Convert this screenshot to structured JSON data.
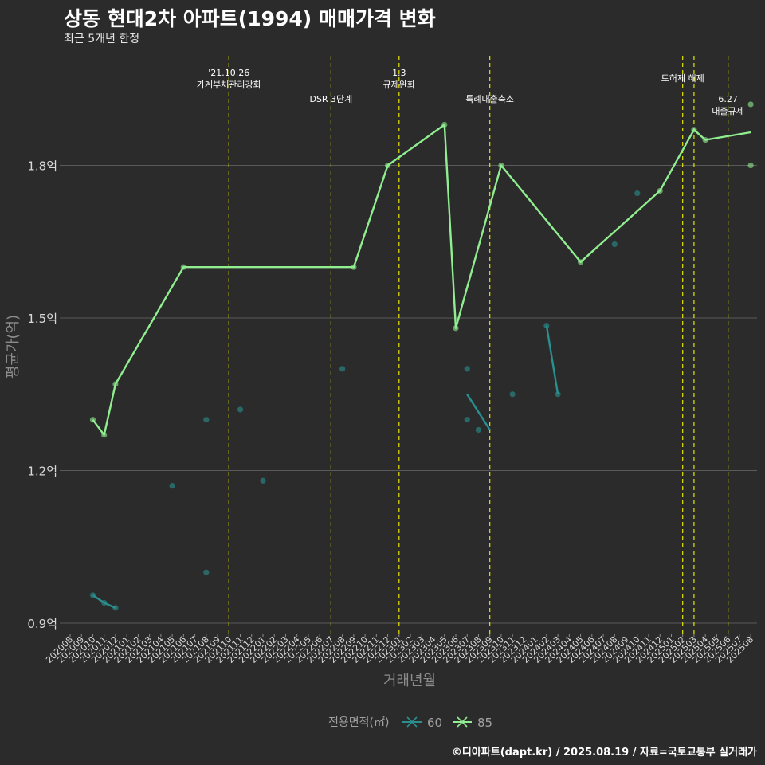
{
  "title": "상동 현대2차 아파트(1994) 매매가격 변화",
  "subtitle": "최근 5개년 한정",
  "caption": "©디아파트(dapt.kr) / 2025.08.19 / 자료=국토교통부 실거래가",
  "colors": {
    "background": "#2b2b2b",
    "grid": "#5a5a5a",
    "s60": "#2a8f8f",
    "s85": "#90ee90",
    "event": "#e6e600"
  },
  "chart_data": {
    "type": "line",
    "xlabel": "거래년월",
    "ylabel": "평균가(억)",
    "ylim": [
      0.88,
      2.02
    ],
    "yticks": [
      {
        "v": 0.9,
        "label": "0.9억"
      },
      {
        "v": 1.2,
        "label": "1.2억"
      },
      {
        "v": 1.5,
        "label": "1.5억"
      },
      {
        "v": 1.8,
        "label": "1.8억"
      }
    ],
    "categories": [
      "202008",
      "202009",
      "202010",
      "202011",
      "202012",
      "202101",
      "202102",
      "202103",
      "202104",
      "202105",
      "202106",
      "202107",
      "202108",
      "202109",
      "202110",
      "202111",
      "202112",
      "202201",
      "202202",
      "202203",
      "202204",
      "202205",
      "202206",
      "202207",
      "202208",
      "202209",
      "202210",
      "202211",
      "202212",
      "202301",
      "202302",
      "202303",
      "202304",
      "202305",
      "202306",
      "202307",
      "202308",
      "202309",
      "202310",
      "202311",
      "202312",
      "202401",
      "202402",
      "202403",
      "202404",
      "202405",
      "202406",
      "202407",
      "202408",
      "202409",
      "202410",
      "202411",
      "202412",
      "202501",
      "202502",
      "202503",
      "202504",
      "202505",
      "202506",
      "202507",
      "202508"
    ],
    "series": [
      {
        "name": "60",
        "color": "#2a8f8f",
        "line_segments": [
          [
            [
              "202010",
              0.955
            ],
            [
              "202011",
              0.94
            ],
            [
              "202012",
              0.93
            ]
          ],
          [
            [
              "202307",
              1.35
            ],
            [
              "202309",
              1.28
            ]
          ],
          [
            [
              "202402",
              1.485
            ],
            [
              "202403",
              1.35
            ]
          ]
        ],
        "points": [
          [
            "202010",
            0.955
          ],
          [
            "202011",
            0.94
          ],
          [
            "202012",
            0.93
          ],
          [
            "202105",
            1.17
          ],
          [
            "202108",
            1.3
          ],
          [
            "202108",
            1.0
          ],
          [
            "202111",
            1.32
          ],
          [
            "202201",
            1.18
          ],
          [
            "202208",
            1.4
          ],
          [
            "202307",
            1.4
          ],
          [
            "202307",
            1.3
          ],
          [
            "202308",
            1.28
          ],
          [
            "202311",
            1.35
          ],
          [
            "202402",
            1.485
          ],
          [
            "202403",
            1.35
          ],
          [
            "202408",
            1.645
          ],
          [
            "202410",
            1.745
          ]
        ]
      },
      {
        "name": "85",
        "color": "#90ee90",
        "line": [
          [
            "202010",
            1.3
          ],
          [
            "202011",
            1.27
          ],
          [
            "202012",
            1.37
          ],
          [
            "202106",
            1.6
          ],
          [
            "202209",
            1.6
          ],
          [
            "202212",
            1.8
          ],
          [
            "202305",
            1.88
          ],
          [
            "202306",
            1.48
          ],
          [
            "202310",
            1.8
          ],
          [
            "202405",
            1.61
          ],
          [
            "202412",
            1.75
          ],
          [
            "202503",
            1.87
          ],
          [
            "202504",
            1.85
          ],
          [
            "202508",
            1.865
          ]
        ],
        "points": [
          [
            "202010",
            1.3
          ],
          [
            "202011",
            1.27
          ],
          [
            "202012",
            1.37
          ],
          [
            "202106",
            1.6
          ],
          [
            "202209",
            1.6
          ],
          [
            "202212",
            1.8
          ],
          [
            "202305",
            1.88
          ],
          [
            "202306",
            1.48
          ],
          [
            "202310",
            1.8
          ],
          [
            "202405",
            1.61
          ],
          [
            "202412",
            1.75
          ],
          [
            "202503",
            1.87
          ],
          [
            "202504",
            1.85
          ],
          [
            "202508",
            1.92
          ],
          [
            "202508",
            1.8
          ]
        ]
      }
    ],
    "events": [
      {
        "x": "202110",
        "lines": [
          "'21.10.26",
          "가계부채관리강화"
        ],
        "level": 0
      },
      {
        "x": "202207",
        "lines": [
          "DSR 3단계"
        ],
        "level": 2
      },
      {
        "x": "202301",
        "lines": [
          "1.3",
          "규제완화"
        ],
        "level": 0
      },
      {
        "x": "202309",
        "lines": [
          "특례대출축소"
        ],
        "level": 2
      },
      {
        "x": "202502",
        "lines": [
          "토허제 해제"
        ],
        "level": 1
      },
      {
        "x": "202503",
        "lines": [],
        "level": 1
      },
      {
        "x": "202506",
        "lines": [
          "6.27",
          "대출규제"
        ],
        "level": 2
      }
    ],
    "legend": {
      "title": "전용면적(㎡)",
      "placement": "bottom",
      "items": [
        "60",
        "85"
      ]
    }
  }
}
